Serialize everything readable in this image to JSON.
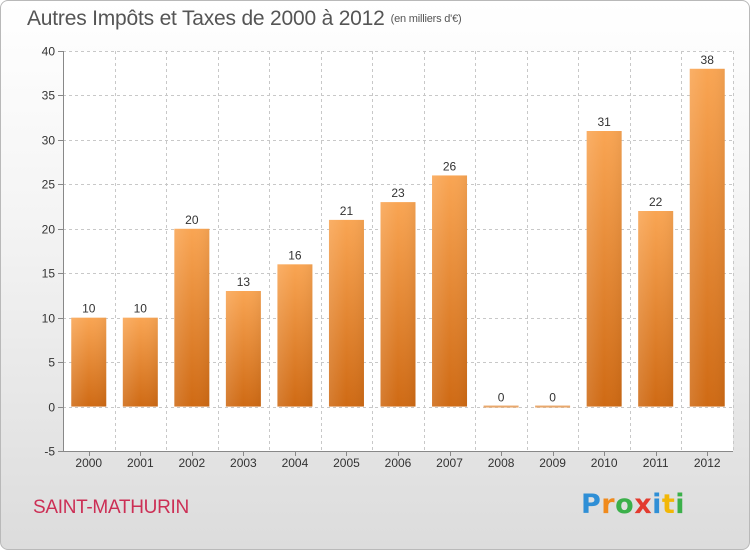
{
  "header": {
    "title": "Autres Impôts et Taxes de 2000 à 2012",
    "unit": "(en milliers d'€)"
  },
  "footer": {
    "commune": "SAINT-MATHURIN",
    "brand": {
      "letters": [
        "P",
        "r",
        "o",
        "x",
        "i",
        "t",
        "i"
      ],
      "colors": [
        "#2f8fd6",
        "#f08a1c",
        "#3bb04a",
        "#e33b2f",
        "#2f8fd6",
        "#f2b707",
        "#3bb04a"
      ]
    }
  },
  "chart_data": {
    "type": "bar",
    "categories": [
      "2000",
      "2001",
      "2002",
      "2003",
      "2004",
      "2005",
      "2006",
      "2007",
      "2008",
      "2009",
      "2010",
      "2011",
      "2012"
    ],
    "values": [
      10,
      10,
      20,
      13,
      16,
      21,
      23,
      26,
      0,
      0,
      31,
      22,
      38
    ],
    "data_labels": [
      "10",
      "10",
      "20",
      "13",
      "16",
      "21",
      "23",
      "26",
      "0",
      "0",
      "31",
      "22",
      "38"
    ],
    "ylim": [
      -5,
      40
    ],
    "yticks": [
      -5,
      0,
      5,
      10,
      15,
      20,
      25,
      30,
      35,
      40
    ],
    "ytick_labels": [
      "-5",
      "0",
      "5",
      "10",
      "15",
      "20",
      "25",
      "30",
      "35",
      "40"
    ],
    "grid": true,
    "bar_color": "#f08c35"
  }
}
